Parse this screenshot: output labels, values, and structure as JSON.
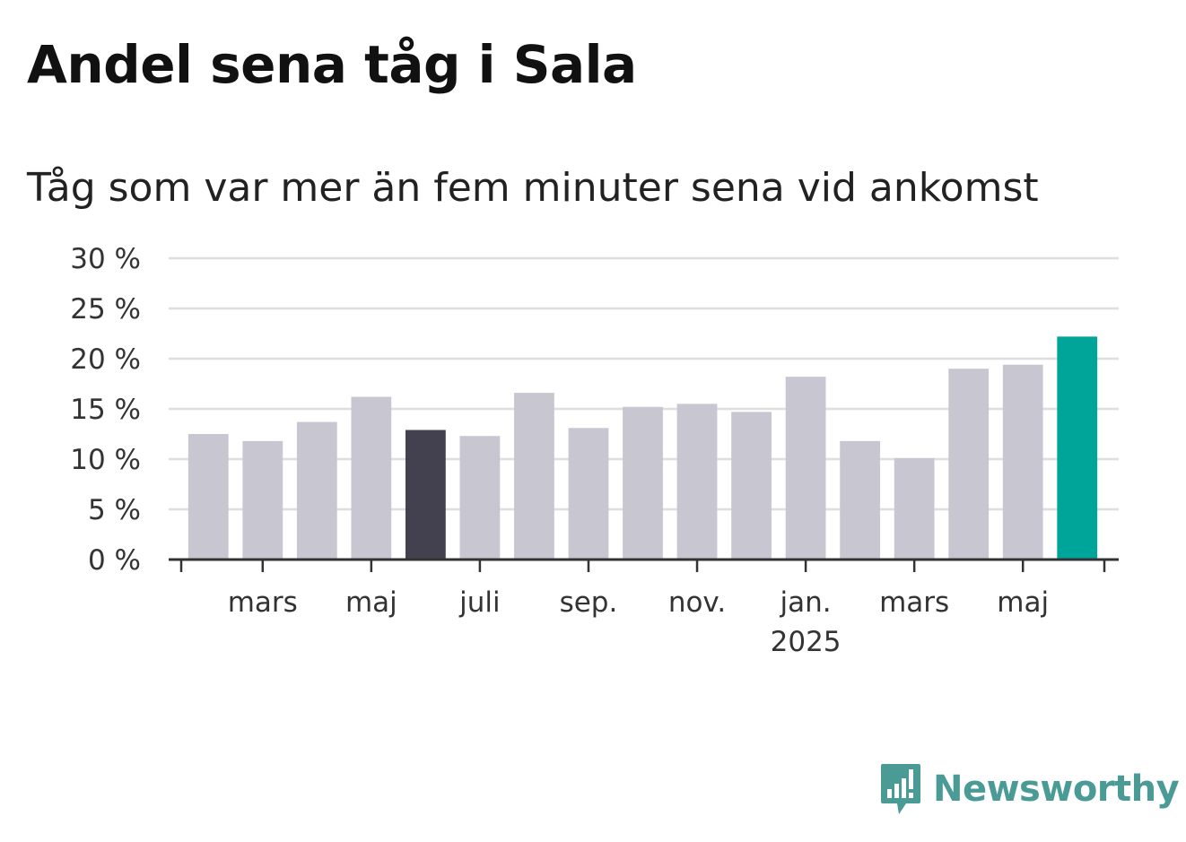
{
  "title": "Andel sena tåg i Sala",
  "subtitle": "Tåg som var mer än fem minuter sena vid ankomst",
  "brand": {
    "name": "Newsworthy",
    "color": "#4a9a96"
  },
  "colors": {
    "default_bar": "#c8c7d1",
    "highlight_bar": "#43414f",
    "latest_bar": "#00a59a",
    "gridline": "#dedede",
    "axis": "#333333"
  },
  "chart_data": {
    "type": "bar",
    "title": "Andel sena tåg i Sala",
    "subtitle": "Tåg som var mer än fem minuter sena vid ankomst",
    "ylim": [
      0,
      30
    ],
    "yticks": [
      "0 %",
      "5 %",
      "10 %",
      "15 %",
      "20 %",
      "25 %",
      "30 %"
    ],
    "grid": true,
    "categories": [
      "2024-02",
      "2024-03",
      "2024-04",
      "2024-05",
      "2024-06",
      "2024-07",
      "2024-08",
      "2024-09",
      "2024-10",
      "2024-11",
      "2024-12",
      "2025-01",
      "2025-02",
      "2025-03",
      "2025-04",
      "2025-05",
      "2025-06"
    ],
    "values": [
      12.5,
      11.8,
      13.7,
      16.2,
      12.9,
      12.3,
      16.6,
      13.1,
      15.2,
      15.5,
      14.7,
      18.2,
      11.8,
      10.1,
      19.0,
      19.4,
      22.2
    ],
    "highlight": {
      "2024-06": "highlight_bar",
      "2025-06": "latest_bar"
    },
    "x_tick_labels": [
      {
        "at": "2024-03",
        "label": "mars",
        "sub": ""
      },
      {
        "at": "2024-05",
        "label": "maj",
        "sub": ""
      },
      {
        "at": "2024-07",
        "label": "juli",
        "sub": ""
      },
      {
        "at": "2024-09",
        "label": "sep.",
        "sub": ""
      },
      {
        "at": "2024-11",
        "label": "nov.",
        "sub": ""
      },
      {
        "at": "2025-01",
        "label": "jan.",
        "sub": "2025"
      },
      {
        "at": "2025-03",
        "label": "mars",
        "sub": ""
      },
      {
        "at": "2025-05",
        "label": "maj",
        "sub": ""
      }
    ]
  }
}
